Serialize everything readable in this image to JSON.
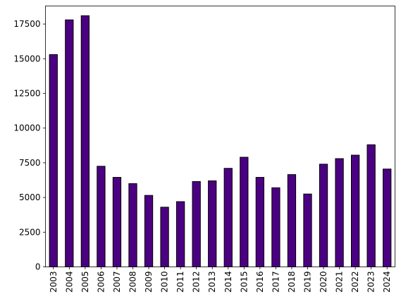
{
  "chart_data": {
    "type": "bar",
    "title": "",
    "xlabel": "",
    "ylabel": "",
    "categories": [
      "2003",
      "2004",
      "2005",
      "2006",
      "2007",
      "2008",
      "2009",
      "2010",
      "2011",
      "2012",
      "2013",
      "2014",
      "2015",
      "2016",
      "2017",
      "2018",
      "2019",
      "2020",
      "2021",
      "2022",
      "2023",
      "2024"
    ],
    "values": [
      15300,
      17800,
      18100,
      7250,
      6450,
      6000,
      5150,
      4300,
      4700,
      6150,
      6200,
      7100,
      7900,
      6450,
      5700,
      6650,
      5250,
      7400,
      7800,
      8050,
      8800,
      7050
    ],
    "ylim": [
      0,
      18800
    ],
    "yticks": [
      "0",
      "2500",
      "5000",
      "7500",
      "10000",
      "12500",
      "15000",
      "17500"
    ],
    "grid": false,
    "legend": "none",
    "bar_color": "#4b0082",
    "edge_color": "#000000"
  }
}
